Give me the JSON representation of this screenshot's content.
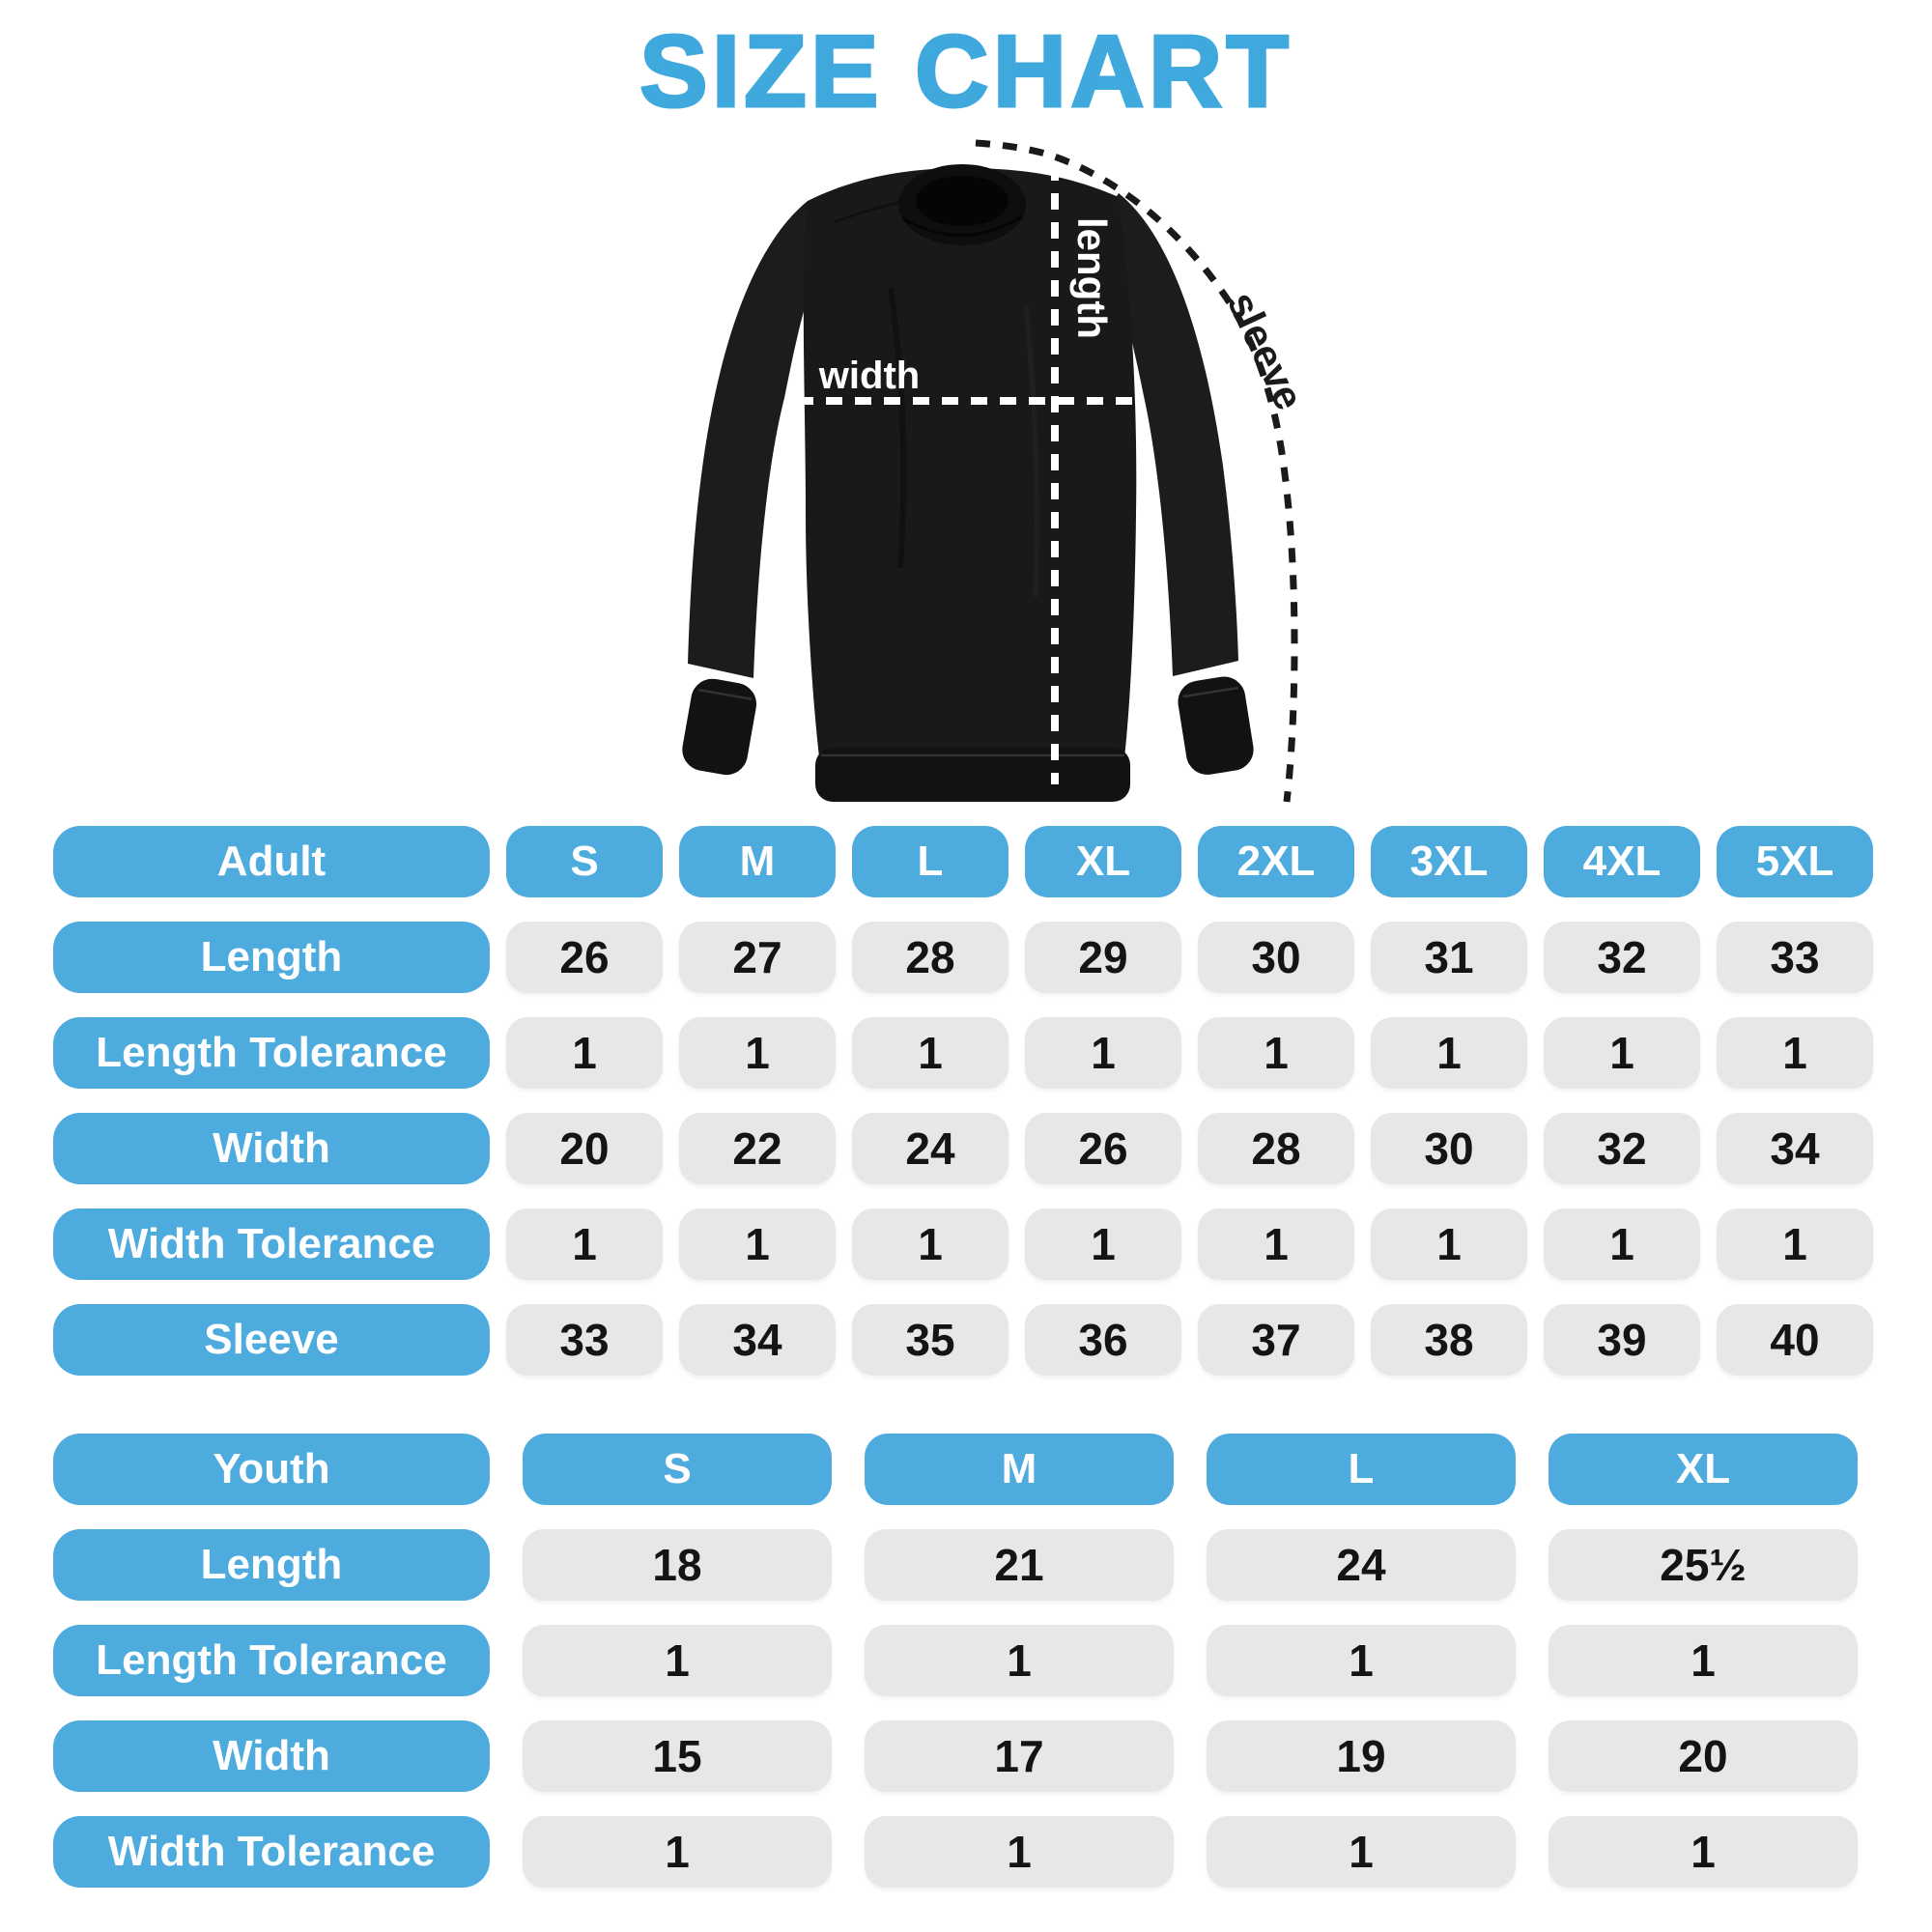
{
  "page": {
    "title": "SIZE CHART"
  },
  "colors": {
    "title_blue": "#3FA8DC",
    "pill_blue": "#4EABDE",
    "cell_gray": "#E7E7E9",
    "value_text": "#141416",
    "garment_black": "#19191B",
    "measure_line_white": "#FFFFFF",
    "measure_line_black": "#1A1A1A"
  },
  "diagram": {
    "length_label": "length",
    "width_label": "width",
    "sleeve_label": "sleeve"
  },
  "adult_table": {
    "header_label": "Adult",
    "columns": [
      "S",
      "M",
      "L",
      "XL",
      "2XL",
      "3XL",
      "4XL",
      "5XL"
    ],
    "rows": [
      {
        "label": "Length",
        "values": [
          "26",
          "27",
          "28",
          "29",
          "30",
          "31",
          "32",
          "33"
        ]
      },
      {
        "label": "Length Tolerance",
        "values": [
          "1",
          "1",
          "1",
          "1",
          "1",
          "1",
          "1",
          "1"
        ]
      },
      {
        "label": "Width",
        "values": [
          "20",
          "22",
          "24",
          "26",
          "28",
          "30",
          "32",
          "34"
        ]
      },
      {
        "label": "Width Tolerance",
        "values": [
          "1",
          "1",
          "1",
          "1",
          "1",
          "1",
          "1",
          "1"
        ]
      },
      {
        "label": "Sleeve",
        "values": [
          "33",
          "34",
          "35",
          "36",
          "37",
          "38",
          "39",
          "40"
        ]
      }
    ]
  },
  "youth_table": {
    "header_label": "Youth",
    "columns": [
      "S",
      "M",
      "L",
      "XL"
    ],
    "rows": [
      {
        "label": "Length",
        "values": [
          "18",
          "21",
          "24",
          "25½"
        ]
      },
      {
        "label": "Length Tolerance",
        "values": [
          "1",
          "1",
          "1",
          "1"
        ]
      },
      {
        "label": "Width",
        "values": [
          "15",
          "17",
          "19",
          "20"
        ]
      },
      {
        "label": "Width Tolerance",
        "values": [
          "1",
          "1",
          "1",
          "1"
        ]
      }
    ]
  }
}
